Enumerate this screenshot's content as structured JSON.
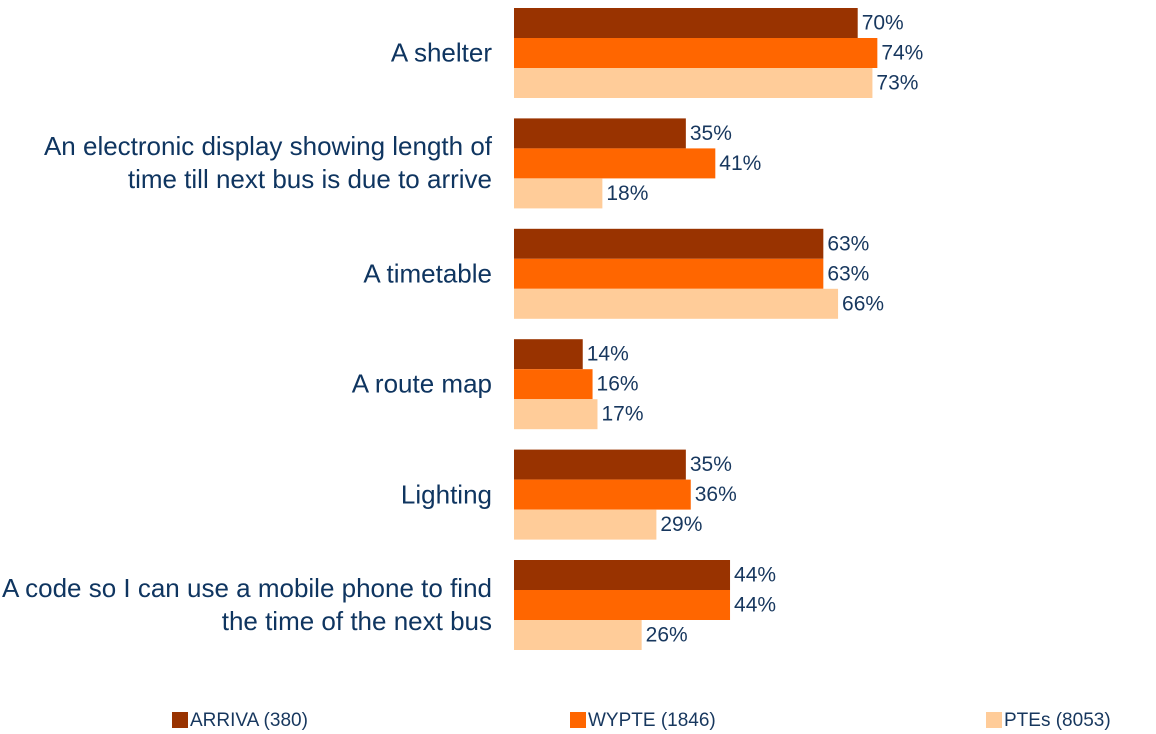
{
  "chart_data": {
    "type": "bar",
    "orientation": "horizontal",
    "categories": [
      "A shelter",
      "An electronic display showing length of time till next bus is due to arrive",
      "A timetable",
      "A route map",
      "Lighting",
      "A code so I can use a mobile phone to find the time of the next bus"
    ],
    "series": [
      {
        "name": "ARRIVA (380)",
        "color": "#993300",
        "values": [
          70,
          35,
          63,
          14,
          35,
          44
        ],
        "value_labels": [
          "70%",
          "35%",
          "63%",
          "14%",
          "35%",
          "44%"
        ]
      },
      {
        "name": "WYPTE (1846)",
        "color": "#ff6600",
        "values": [
          74,
          41,
          63,
          16,
          36,
          44
        ],
        "value_labels": [
          "74%",
          "41%",
          "63%",
          "16%",
          "36%",
          "44%"
        ]
      },
      {
        "name": "PTEs (8053)",
        "color": "#ffcc99",
        "values": [
          73,
          18,
          66,
          17,
          29,
          26
        ],
        "value_labels": [
          "73%",
          "18%",
          "66%",
          "17%",
          "29%",
          "26%"
        ]
      }
    ],
    "legend": "bottom"
  }
}
